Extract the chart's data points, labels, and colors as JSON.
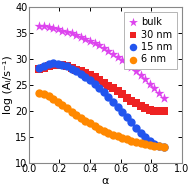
{
  "title": "",
  "xlabel": "α",
  "ylabel": "log (Aᵢ/s⁻¹)",
  "xlim": [
    0.0,
    1.0
  ],
  "ylim": [
    10,
    40
  ],
  "yticks": [
    10,
    15,
    20,
    25,
    30,
    35,
    40
  ],
  "xticks": [
    0.0,
    0.2,
    0.4,
    0.6,
    0.8,
    1.0
  ],
  "background_color": "#ffffff",
  "series": [
    {
      "label": "bulk",
      "color": "#dd44ee",
      "marker": "*",
      "markersize": 7.5,
      "x": [
        0.07,
        0.1,
        0.13,
        0.16,
        0.19,
        0.22,
        0.25,
        0.28,
        0.31,
        0.34,
        0.37,
        0.4,
        0.43,
        0.46,
        0.49,
        0.52,
        0.55,
        0.58,
        0.61,
        0.64,
        0.67,
        0.7,
        0.73,
        0.76,
        0.79,
        0.82,
        0.85,
        0.88
      ],
      "y": [
        36.5,
        36.4,
        36.2,
        36.0,
        35.8,
        35.5,
        35.3,
        35.0,
        34.7,
        34.3,
        34.0,
        33.6,
        33.1,
        32.7,
        32.2,
        31.6,
        31.1,
        30.5,
        29.8,
        29.2,
        28.5,
        27.8,
        27.0,
        26.2,
        25.3,
        24.4,
        23.5,
        22.5
      ]
    },
    {
      "label": "30 nm",
      "color": "#ee2222",
      "marker": "s",
      "markersize": 5.5,
      "x": [
        0.07,
        0.1,
        0.13,
        0.16,
        0.19,
        0.22,
        0.25,
        0.28,
        0.31,
        0.34,
        0.37,
        0.4,
        0.43,
        0.46,
        0.49,
        0.52,
        0.55,
        0.58,
        0.61,
        0.64,
        0.67,
        0.7,
        0.73,
        0.76,
        0.79,
        0.82,
        0.85,
        0.88
      ],
      "y": [
        28.1,
        28.4,
        28.7,
        28.8,
        28.9,
        28.8,
        28.6,
        28.3,
        28.0,
        27.7,
        27.3,
        26.9,
        26.5,
        26.0,
        25.5,
        24.9,
        24.4,
        23.8,
        23.2,
        22.6,
        22.0,
        21.5,
        21.0,
        20.5,
        20.1,
        20.0,
        20.0,
        20.0
      ]
    },
    {
      "label": "15 nm",
      "color": "#2255ee",
      "marker": "o",
      "markersize": 6.0,
      "x": [
        0.07,
        0.1,
        0.13,
        0.16,
        0.19,
        0.22,
        0.25,
        0.28,
        0.31,
        0.34,
        0.37,
        0.4,
        0.43,
        0.46,
        0.49,
        0.52,
        0.55,
        0.58,
        0.61,
        0.64,
        0.67,
        0.7,
        0.73,
        0.76,
        0.79,
        0.82,
        0.85,
        0.88
      ],
      "y": [
        28.3,
        28.7,
        29.0,
        29.2,
        29.1,
        28.9,
        28.6,
        28.2,
        27.7,
        27.2,
        26.6,
        25.9,
        25.2,
        24.4,
        23.6,
        22.7,
        21.8,
        20.8,
        19.8,
        18.8,
        17.8,
        16.8,
        15.8,
        15.0,
        14.2,
        13.6,
        13.2,
        13.0
      ]
    },
    {
      "label": "6 nm",
      "color": "#ff8800",
      "marker": "o",
      "markersize": 6.0,
      "x": [
        0.07,
        0.1,
        0.13,
        0.16,
        0.19,
        0.22,
        0.25,
        0.28,
        0.31,
        0.34,
        0.37,
        0.4,
        0.43,
        0.46,
        0.49,
        0.52,
        0.55,
        0.58,
        0.61,
        0.64,
        0.67,
        0.7,
        0.73,
        0.76,
        0.79,
        0.82,
        0.85,
        0.88
      ],
      "y": [
        23.5,
        23.2,
        22.8,
        22.3,
        21.7,
        21.1,
        20.5,
        19.9,
        19.3,
        18.7,
        18.1,
        17.6,
        17.1,
        16.6,
        16.2,
        15.8,
        15.4,
        15.1,
        14.8,
        14.5,
        14.2,
        14.0,
        13.8,
        13.6,
        13.4,
        13.3,
        13.2,
        13.1
      ]
    }
  ],
  "legend_fontsize": 7.0,
  "axis_fontsize": 8.0,
  "tick_fontsize": 7.0
}
